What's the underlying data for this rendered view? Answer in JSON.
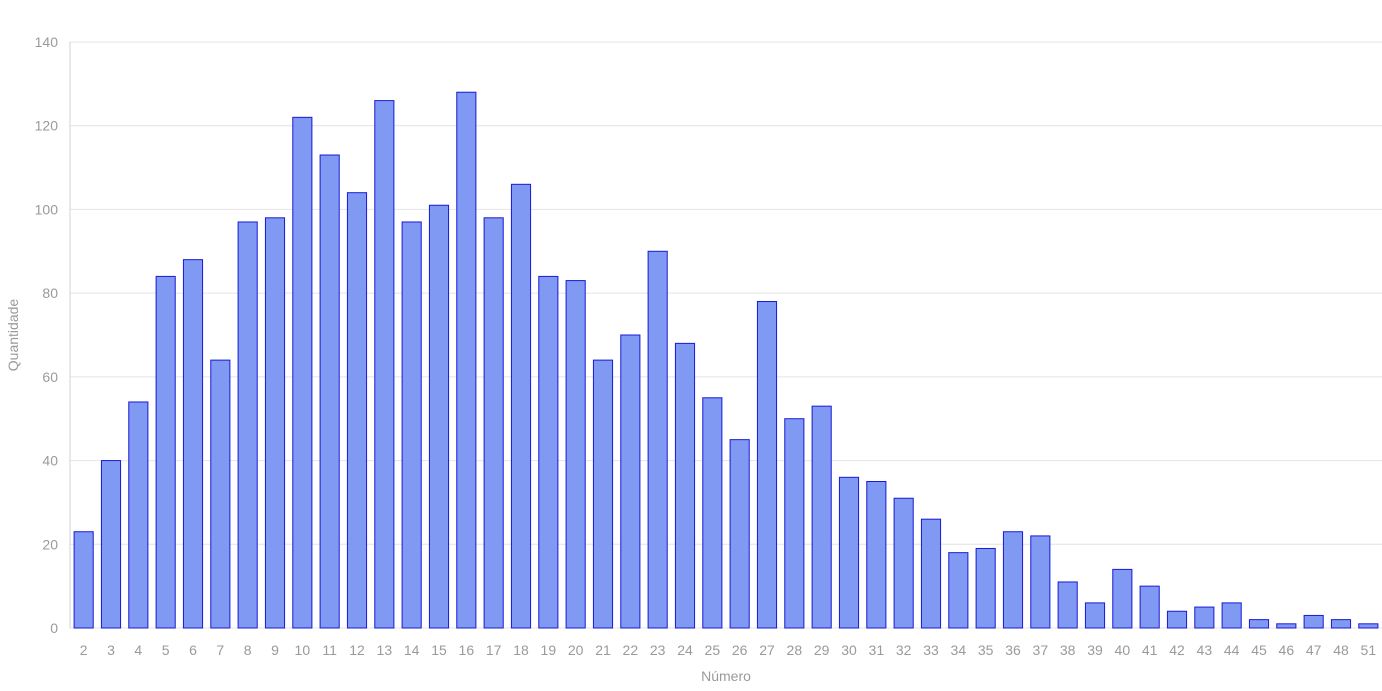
{
  "chart_data": {
    "type": "bar",
    "xlabel": "Número",
    "ylabel": "Quantidade",
    "ylim": [
      0,
      140
    ],
    "yticks": [
      0,
      20,
      40,
      60,
      80,
      100,
      120,
      140
    ],
    "grid": true,
    "categories": [
      "2",
      "3",
      "4",
      "5",
      "6",
      "7",
      "8",
      "9",
      "10",
      "11",
      "12",
      "13",
      "14",
      "15",
      "16",
      "17",
      "18",
      "19",
      "20",
      "21",
      "22",
      "23",
      "24",
      "25",
      "26",
      "27",
      "28",
      "29",
      "30",
      "31",
      "32",
      "33",
      "34",
      "35",
      "36",
      "37",
      "38",
      "39",
      "40",
      "41",
      "42",
      "43",
      "44",
      "45",
      "46",
      "47",
      "48",
      "51"
    ],
    "values": [
      23,
      40,
      54,
      84,
      88,
      64,
      97,
      98,
      122,
      113,
      104,
      126,
      97,
      101,
      128,
      98,
      106,
      84,
      83,
      64,
      70,
      90,
      68,
      55,
      45,
      78,
      50,
      53,
      36,
      35,
      31,
      26,
      18,
      19,
      23,
      22,
      11,
      6,
      14,
      10,
      4,
      5,
      6,
      2,
      1,
      3,
      2,
      1
    ],
    "bar_fill": "#8099f2",
    "bar_stroke": "#1a1ad6"
  }
}
